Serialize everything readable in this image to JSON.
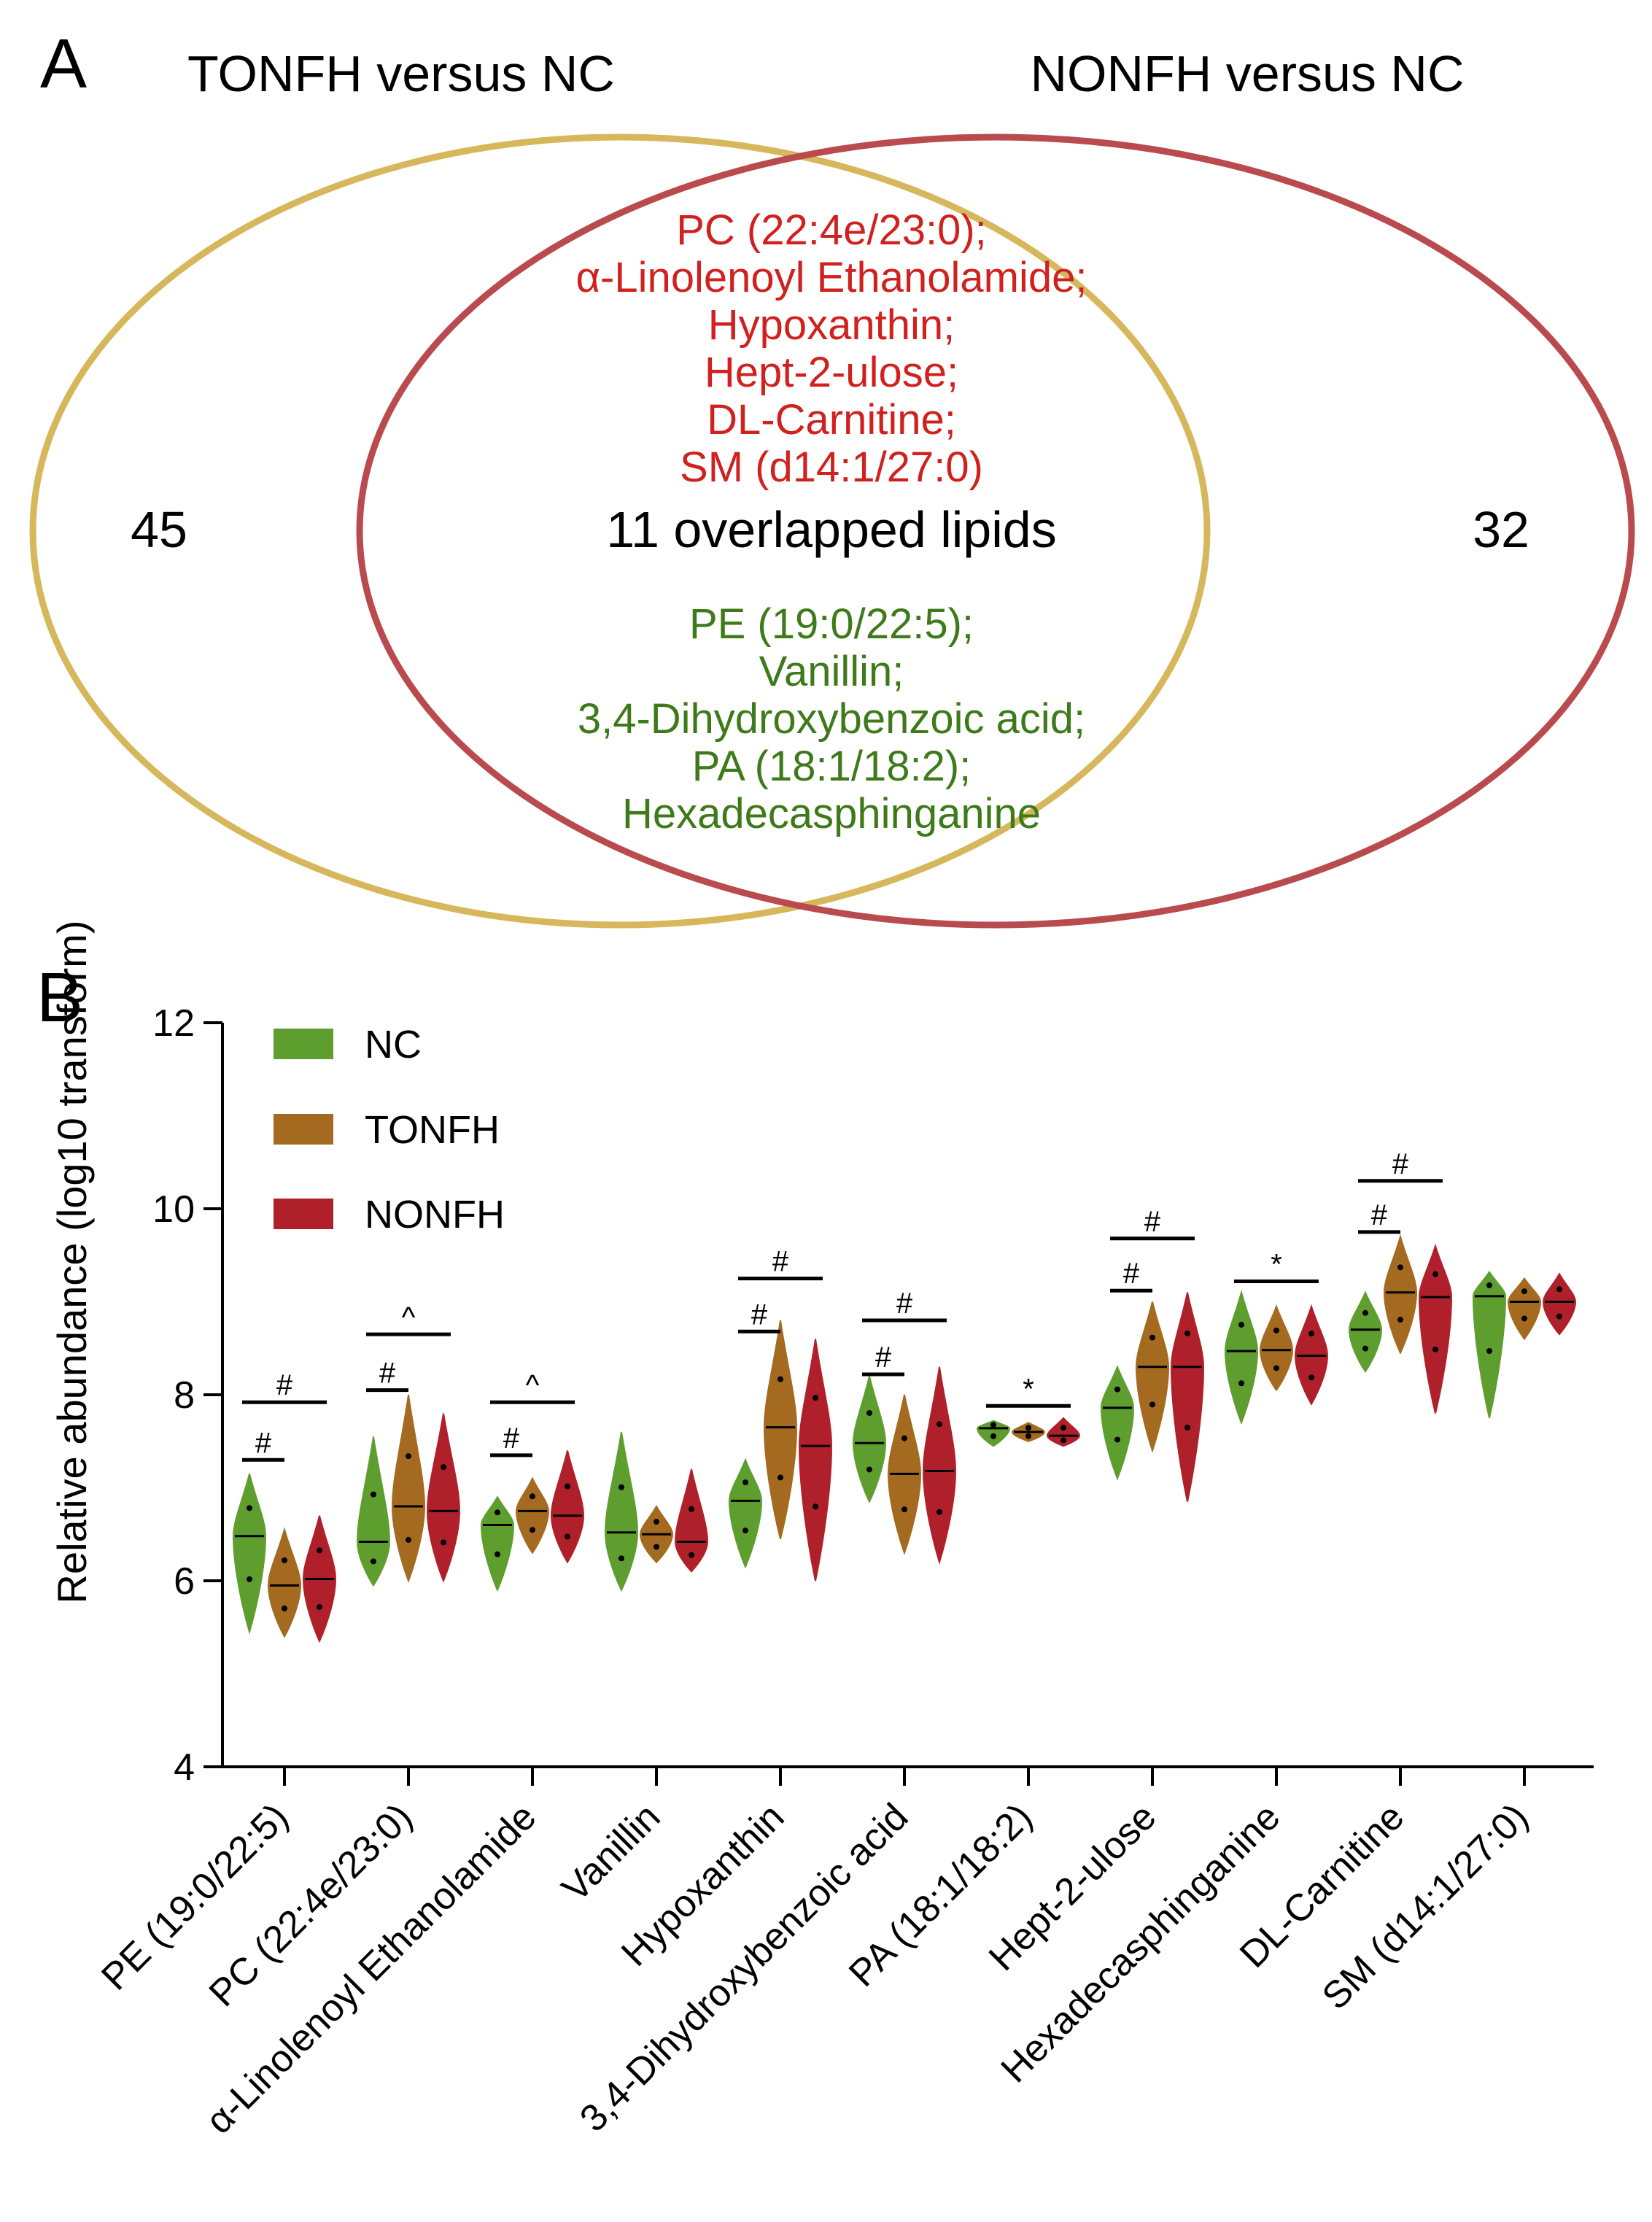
{
  "figure": {
    "panel_a": {
      "label": "A",
      "left_title": "TONFH versus NC",
      "right_title": "NONFH versus NC",
      "left_count": "45",
      "right_count": "32",
      "center_text": "11 overlapped lipids",
      "up_lipids": [
        "PC (22:4e/23:0);",
        "α-Linolenoyl Ethanolamide;",
        "Hypoxanthin;",
        "Hept-2-ulose;",
        "DL-Carnitine;",
        "SM (d14:1/27:0)"
      ],
      "down_lipids": [
        "PE (19:0/22:5);",
        "Vanillin;",
        "3,4-Dihydroxybenzoic acid;",
        "PA (18:1/18:2);",
        "Hexadecasphinganine"
      ],
      "colors": {
        "left_circle": "#D6B75C",
        "right_circle": "#B94A4D",
        "up_text": "#D0211E",
        "down_text": "#3E7A19"
      }
    },
    "panel_b": {
      "label": "B"
    }
  },
  "chart_data": {
    "type": "violin",
    "title": "",
    "xlabel": "",
    "ylabel": "Relative abundance (log10 transform)",
    "ylim": [
      4,
      12
    ],
    "yticks": [
      "4",
      "6",
      "8",
      "10",
      "12"
    ],
    "categories": [
      "PE (19:0/22:5)",
      "PC (22:4e/23:0)",
      "α-Linolenoyl Ethanolamide",
      "Vanillin",
      "Hypoxanthin",
      "3,4-Dihydroxybenzoic acid",
      "PA (18:1/18:2)",
      "Hept-2-ulose",
      "Hexadecasphinganine",
      "DL-Carnitine",
      "SM (d14:1/27:0)"
    ],
    "legend": [
      {
        "name": "NC",
        "color": "#5E9E2E"
      },
      {
        "name": "TONFH",
        "color": "#A46A1F"
      },
      {
        "name": "NONFH",
        "color": "#B0202A"
      }
    ],
    "series": [
      {
        "name": "NC",
        "color": "#5E9E2E",
        "median": [
          6.48,
          6.42,
          6.6,
          6.52,
          6.86,
          7.48,
          7.64,
          7.86,
          8.47,
          8.7,
          9.06
        ],
        "min": [
          5.45,
          5.95,
          5.9,
          5.9,
          6.15,
          6.85,
          7.45,
          7.1,
          7.7,
          8.25,
          7.75
        ],
        "max": [
          7.15,
          7.55,
          6.9,
          7.6,
          7.3,
          8.2,
          7.72,
          8.3,
          9.1,
          9.1,
          9.32
        ]
      },
      {
        "name": "TONFH",
        "color": "#A46A1F",
        "median": [
          5.95,
          6.8,
          6.75,
          6.5,
          7.65,
          7.15,
          7.6,
          8.3,
          8.48,
          9.1,
          9.0
        ],
        "min": [
          5.4,
          6.0,
          6.3,
          6.2,
          6.45,
          6.3,
          7.5,
          7.4,
          8.05,
          8.45,
          8.6
        ],
        "max": [
          6.55,
          8.0,
          7.1,
          6.8,
          8.8,
          8.0,
          7.7,
          9.0,
          8.95,
          9.7,
          9.25
        ]
      },
      {
        "name": "NONFH",
        "color": "#B0202A",
        "median": [
          6.02,
          6.75,
          6.7,
          6.42,
          7.45,
          7.18,
          7.56,
          8.3,
          8.42,
          9.05,
          9.0
        ],
        "min": [
          5.35,
          6.0,
          6.2,
          6.1,
          6.0,
          6.2,
          7.45,
          6.85,
          7.9,
          7.8,
          8.65
        ],
        "max": [
          6.7,
          7.8,
          7.4,
          7.2,
          8.6,
          8.3,
          7.75,
          9.1,
          8.95,
          9.6,
          9.3
        ]
      }
    ],
    "annotations": [
      {
        "category": 0,
        "symbol": "#",
        "span": "NC-TONFH",
        "y": 7.3
      },
      {
        "category": 0,
        "symbol": "#",
        "span": "NC-NONFH",
        "y": 7.92
      },
      {
        "category": 1,
        "symbol": "#",
        "span": "NC-TONFH",
        "y": 8.05
      },
      {
        "category": 1,
        "symbol": "^",
        "span": "NC-NONFH",
        "y": 8.65
      },
      {
        "category": 2,
        "symbol": "#",
        "span": "NC-TONFH",
        "y": 7.35
      },
      {
        "category": 2,
        "symbol": "^",
        "span": "NC-NONFH",
        "y": 7.92
      },
      {
        "category": 4,
        "symbol": "#",
        "span": "NC-TONFH",
        "y": 8.68
      },
      {
        "category": 4,
        "symbol": "#",
        "span": "NC-NONFH",
        "y": 9.25
      },
      {
        "category": 5,
        "symbol": "#",
        "span": "NC-TONFH",
        "y": 8.22
      },
      {
        "category": 5,
        "symbol": "#",
        "span": "NC-NONFH",
        "y": 8.8
      },
      {
        "category": 6,
        "symbol": "*",
        "span": "NC-NONFH",
        "y": 7.88
      },
      {
        "category": 7,
        "symbol": "#",
        "span": "NC-TONFH",
        "y": 9.12
      },
      {
        "category": 7,
        "symbol": "#",
        "span": "NC-NONFH",
        "y": 9.68
      },
      {
        "category": 8,
        "symbol": "*",
        "span": "NC-NONFH",
        "y": 9.22
      },
      {
        "category": 9,
        "symbol": "#",
        "span": "NC-TONFH",
        "y": 9.75
      },
      {
        "category": 9,
        "symbol": "#",
        "span": "NC-NONFH",
        "y": 10.3
      }
    ]
  }
}
